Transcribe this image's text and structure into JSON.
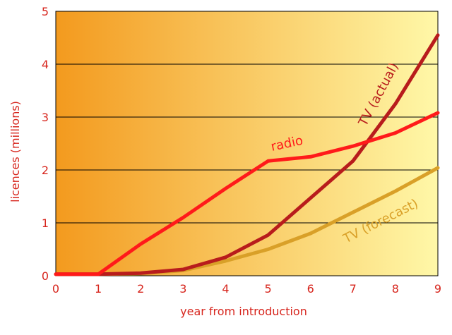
{
  "chart_data": {
    "type": "line",
    "xlabel": "year from introduction",
    "ylabel": "licences (millions)",
    "xlim": [
      0,
      9
    ],
    "ylim": [
      0,
      5
    ],
    "x_ticks": [
      "0",
      "1",
      "2",
      "3",
      "4",
      "5",
      "6",
      "7",
      "8",
      "9"
    ],
    "y_ticks": [
      "0",
      "1",
      "2",
      "3",
      "4",
      "5"
    ],
    "grid": "horizontal",
    "legend": "none (labels placed along the lines)",
    "background_gradient": [
      "#f39a1e",
      "#fff8a8"
    ],
    "series": [
      {
        "name": "radio",
        "color": "#ff1a1a",
        "x": [
          0,
          1,
          2,
          3,
          4,
          5,
          6,
          7,
          8,
          9
        ],
        "values": [
          0.03,
          0.03,
          0.6,
          1.1,
          1.65,
          2.17,
          2.25,
          2.45,
          2.7,
          3.08
        ]
      },
      {
        "name": "TV (actual)",
        "color": "#b81c1c",
        "x": [
          0,
          1,
          2,
          3,
          4,
          5,
          6,
          7,
          8,
          9
        ],
        "values": [
          0.03,
          0.03,
          0.05,
          0.12,
          0.35,
          0.77,
          1.47,
          2.17,
          3.25,
          4.55
        ]
      },
      {
        "name": "TV (forecast)",
        "color": "#d9a028",
        "x": [
          0,
          1,
          2,
          3,
          4,
          5,
          6,
          7,
          8,
          9
        ],
        "values": [
          0.03,
          0.03,
          0.04,
          0.1,
          0.28,
          0.5,
          0.8,
          1.2,
          1.6,
          2.04
        ]
      }
    ]
  }
}
